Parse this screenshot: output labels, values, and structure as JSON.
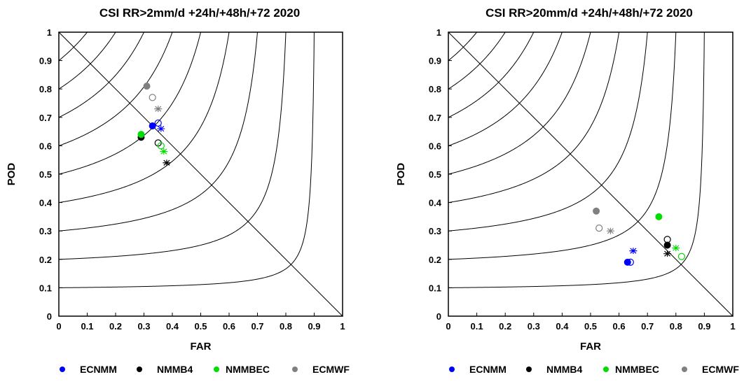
{
  "chart_data": [
    {
      "type": "scatter",
      "title": "CSI   RR>2mm/d    +24h/+48h/+72   2020",
      "xlabel": "FAR",
      "ylabel": "POD",
      "xlim": [
        0,
        1
      ],
      "ylim": [
        0,
        1
      ],
      "xticks": [
        "0",
        "0.1",
        "0.2",
        "0.3",
        "0.4",
        "0.5",
        "0.6",
        "0.7",
        "0.8",
        "0.9",
        "1"
      ],
      "yticks": [
        "0",
        "0.1",
        "0.2",
        "0.3",
        "0.4",
        "0.5",
        "0.6",
        "0.7",
        "0.8",
        "0.9",
        "1"
      ],
      "csi_isolines": [
        0.1,
        0.2,
        0.3,
        0.4,
        0.5,
        0.6,
        0.7,
        0.8,
        0.9
      ],
      "diagonal": true,
      "legend": {
        "placement": "bottom",
        "entries": [
          "ECNMM",
          "NMMB4",
          "NMMBEC",
          "ECMWF"
        ]
      },
      "series": [
        {
          "name": "ECNMM",
          "color": "#0000ff",
          "points": [
            {
              "lead": "+24h",
              "marker": "filled-circle",
              "x": 0.33,
              "y": 0.67
            },
            {
              "lead": "+48h",
              "marker": "open-circle",
              "x": 0.35,
              "y": 0.68
            },
            {
              "lead": "+72h",
              "marker": "star",
              "x": 0.36,
              "y": 0.66
            }
          ]
        },
        {
          "name": "NMMB4",
          "color": "#000000",
          "points": [
            {
              "lead": "+24h",
              "marker": "filled-circle",
              "x": 0.29,
              "y": 0.63
            },
            {
              "lead": "+48h",
              "marker": "open-circle",
              "x": 0.35,
              "y": 0.61
            },
            {
              "lead": "+72h",
              "marker": "star",
              "x": 0.38,
              "y": 0.54
            }
          ]
        },
        {
          "name": "NMMBEC",
          "color": "#00dd00",
          "points": [
            {
              "lead": "+24h",
              "marker": "filled-circle",
              "x": 0.29,
              "y": 0.64
            },
            {
              "lead": "+48h",
              "marker": "open-circle",
              "x": 0.36,
              "y": 0.6
            },
            {
              "lead": "+72h",
              "marker": "star",
              "x": 0.37,
              "y": 0.58
            }
          ]
        },
        {
          "name": "ECMWF",
          "color": "#808080",
          "points": [
            {
              "lead": "+24h",
              "marker": "filled-circle",
              "x": 0.31,
              "y": 0.81
            },
            {
              "lead": "+48h",
              "marker": "open-circle",
              "x": 0.33,
              "y": 0.77
            },
            {
              "lead": "+72h",
              "marker": "star",
              "x": 0.35,
              "y": 0.73
            }
          ]
        }
      ]
    },
    {
      "type": "scatter",
      "title": "CSI   RR>20mm/d    +24h/+48h/+72   2020",
      "xlabel": "FAR",
      "ylabel": "POD",
      "xlim": [
        0,
        1
      ],
      "ylim": [
        0,
        1
      ],
      "xticks": [
        "0",
        "0.1",
        "0.2",
        "0.3",
        "0.4",
        "0.5",
        "0.6",
        "0.7",
        "0.8",
        "0.9",
        "1"
      ],
      "yticks": [
        "0",
        "0.1",
        "0.2",
        "0.3",
        "0.4",
        "0.5",
        "0.6",
        "0.7",
        "0.8",
        "0.9",
        "1"
      ],
      "csi_isolines": [
        0.1,
        0.2,
        0.3,
        0.4,
        0.5,
        0.6,
        0.7,
        0.8,
        0.9
      ],
      "diagonal": true,
      "legend": {
        "placement": "bottom",
        "entries": [
          "ECNMM",
          "NMMB4",
          "NMMBEC",
          "ECMWF"
        ]
      },
      "series": [
        {
          "name": "ECNMM",
          "color": "#0000ff",
          "points": [
            {
              "lead": "+24h",
              "marker": "filled-circle",
              "x": 0.63,
              "y": 0.19
            },
            {
              "lead": "+48h",
              "marker": "open-circle",
              "x": 0.64,
              "y": 0.19
            },
            {
              "lead": "+72h",
              "marker": "star",
              "x": 0.65,
              "y": 0.23
            }
          ]
        },
        {
          "name": "NMMB4",
          "color": "#000000",
          "points": [
            {
              "lead": "+24h",
              "marker": "filled-circle",
              "x": 0.77,
              "y": 0.25
            },
            {
              "lead": "+48h",
              "marker": "open-circle",
              "x": 0.77,
              "y": 0.27
            },
            {
              "lead": "+72h",
              "marker": "star",
              "x": 0.77,
              "y": 0.22
            }
          ]
        },
        {
          "name": "NMMBEC",
          "color": "#00dd00",
          "points": [
            {
              "lead": "+24h",
              "marker": "filled-circle",
              "x": 0.74,
              "y": 0.35
            },
            {
              "lead": "+48h",
              "marker": "open-circle",
              "x": 0.82,
              "y": 0.21
            },
            {
              "lead": "+72h",
              "marker": "star",
              "x": 0.8,
              "y": 0.24
            }
          ]
        },
        {
          "name": "ECMWF",
          "color": "#808080",
          "points": [
            {
              "lead": "+24h",
              "marker": "filled-circle",
              "x": 0.52,
              "y": 0.37
            },
            {
              "lead": "+48h",
              "marker": "open-circle",
              "x": 0.53,
              "y": 0.31
            },
            {
              "lead": "+72h",
              "marker": "star",
              "x": 0.57,
              "y": 0.3
            }
          ]
        }
      ]
    }
  ]
}
